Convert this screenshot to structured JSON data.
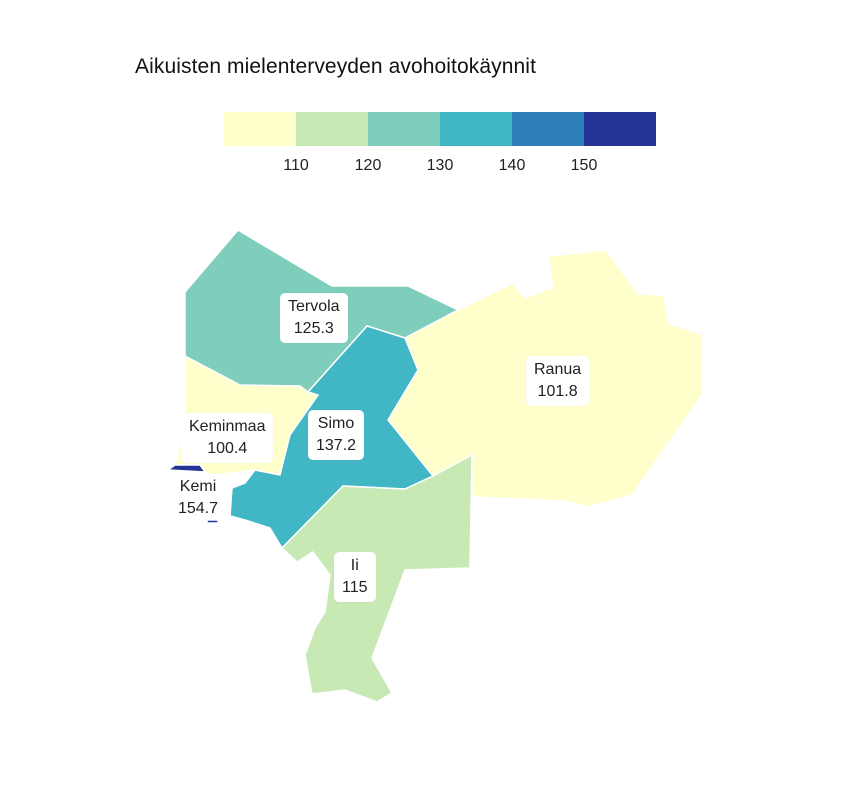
{
  "title": "Aikuisten mielenterveyden avohoitokäynnit",
  "legend": {
    "bins": [
      "#ffffcc",
      "#c7e9b4",
      "#7fcdbb",
      "#41b6c4",
      "#2c7fb8",
      "#253494"
    ],
    "ticks": [
      "110",
      "120",
      "130",
      "140",
      "150"
    ]
  },
  "regions": [
    {
      "name": "Tervola",
      "value": "125.3",
      "color": "#7fcdbb"
    },
    {
      "name": "Ranua",
      "value": "101.8",
      "color": "#ffffcc"
    },
    {
      "name": "Keminmaa",
      "value": "100.4",
      "color": "#ffffcc"
    },
    {
      "name": "Simo",
      "value": "137.2",
      "color": "#41b6c4"
    },
    {
      "name": "Kemi",
      "value": "154.7",
      "color": "#253494"
    },
    {
      "name": "Ii",
      "value": "115",
      "color": "#c7e9b4"
    }
  ]
}
